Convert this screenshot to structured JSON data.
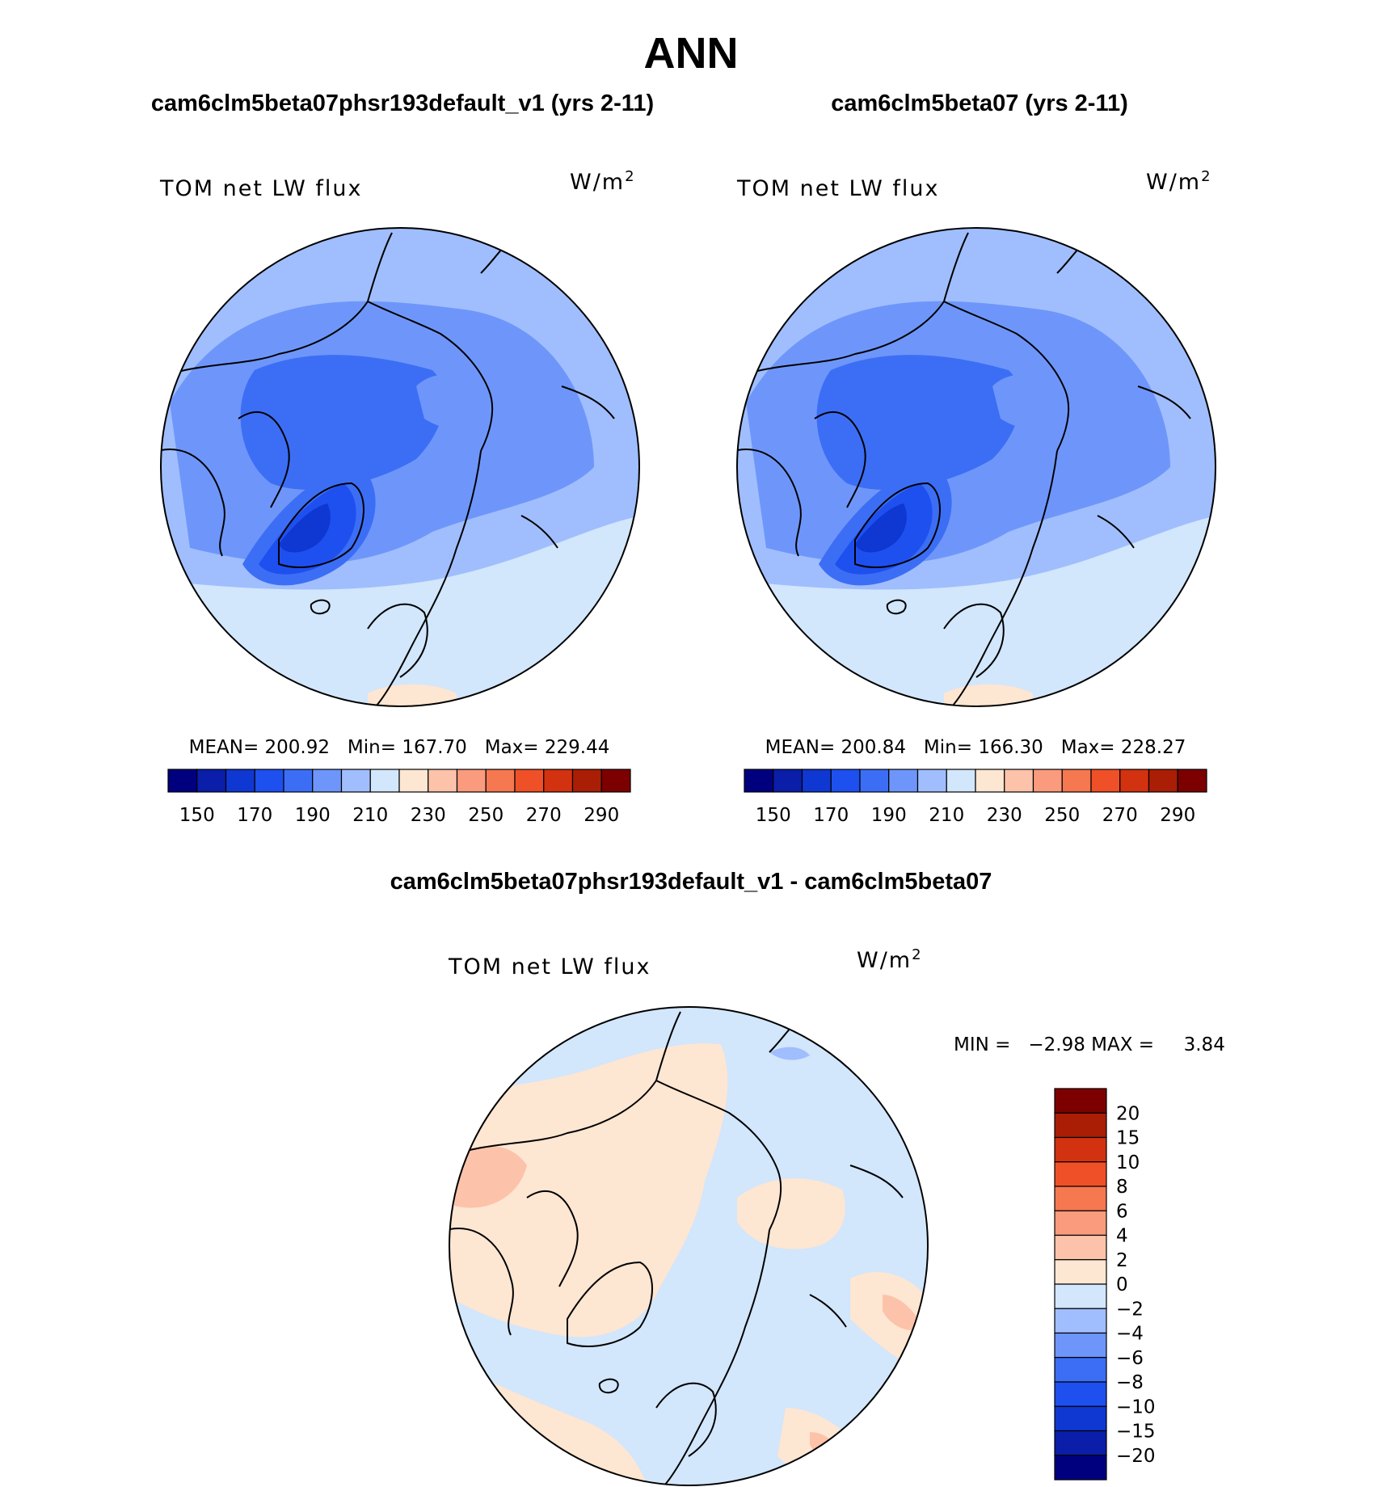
{
  "figure": {
    "title": "ANN",
    "panels": [
      {
        "case": "cam6clm5beta07phsr193default_v1 (yrs 2-11)",
        "variable": "TOM net LW flux",
        "units_base": "W/m",
        "units_exp": "2",
        "stats": "MEAN= 200.92   Min= 167.70   Max= 229.44"
      },
      {
        "case": "cam6clm5beta07 (yrs 2-11)",
        "variable": "TOM net LW flux",
        "units_base": "W/m",
        "units_exp": "2",
        "stats": "MEAN= 200.84   Min= 166.30   Max= 228.27"
      }
    ],
    "difference": {
      "title": "cam6clm5beta07phsr193default_v1 - cam6clm5beta07",
      "variable": "TOM net LW flux",
      "units_base": "W/m",
      "units_exp": "2",
      "minmax": "MIN =   −2.98 MAX =     3.84"
    }
  },
  "colors": {
    "abs_scale": [
      "#00007f",
      "#0a1eaa",
      "#0f37d2",
      "#1e50f0",
      "#3c6ef5",
      "#6e96fa",
      "#a0befd",
      "#d2e6fc",
      "#fde6d2",
      "#fcc3aa",
      "#fa9b7d",
      "#f57850",
      "#f05028",
      "#d2320f",
      "#aa1e05",
      "#7d0000"
    ],
    "diff_scale": [
      "#7d0000",
      "#aa1e05",
      "#d2320f",
      "#f05028",
      "#f57850",
      "#fa9b7d",
      "#fcc3aa",
      "#fde6d2",
      "#d2e6fc",
      "#a0befd",
      "#6e96fa",
      "#3c6ef5",
      "#1e50f0",
      "#0f37d2",
      "#0a1eaa",
      "#00007f"
    ]
  },
  "chart_data": [
    {
      "type": "heatmap",
      "projection": "north-polar-stereographic",
      "title": "cam6clm5beta07phsr193default_v1 (yrs 2-11)",
      "variable": "TOM net LW flux",
      "units": "W/m2",
      "mean": 200.92,
      "min": 167.7,
      "max": 229.44,
      "colorbar_ticks": [
        "150",
        "170",
        "190",
        "210",
        "230",
        "250",
        "270",
        "290"
      ],
      "levels": [
        150,
        160,
        170,
        180,
        190,
        200,
        210,
        220,
        230,
        240,
        250,
        260,
        270,
        280,
        290
      ]
    },
    {
      "type": "heatmap",
      "projection": "north-polar-stereographic",
      "title": "cam6clm5beta07 (yrs 2-11)",
      "variable": "TOM net LW flux",
      "units": "W/m2",
      "mean": 200.84,
      "min": 166.3,
      "max": 228.27,
      "colorbar_ticks": [
        "150",
        "170",
        "190",
        "210",
        "230",
        "250",
        "270",
        "290"
      ],
      "levels": [
        150,
        160,
        170,
        180,
        190,
        200,
        210,
        220,
        230,
        240,
        250,
        260,
        270,
        280,
        290
      ]
    },
    {
      "type": "heatmap",
      "projection": "north-polar-stereographic",
      "title": "cam6clm5beta07phsr193default_v1 - cam6clm5beta07",
      "variable": "TOM net LW flux",
      "units": "W/m2",
      "min": -2.98,
      "max": 3.84,
      "colorbar_ticks": [
        "20",
        "15",
        "10",
        "8",
        "6",
        "4",
        "2",
        "0",
        "−2",
        "−4",
        "−6",
        "−8",
        "−10",
        "−15",
        "−20"
      ]
    }
  ]
}
